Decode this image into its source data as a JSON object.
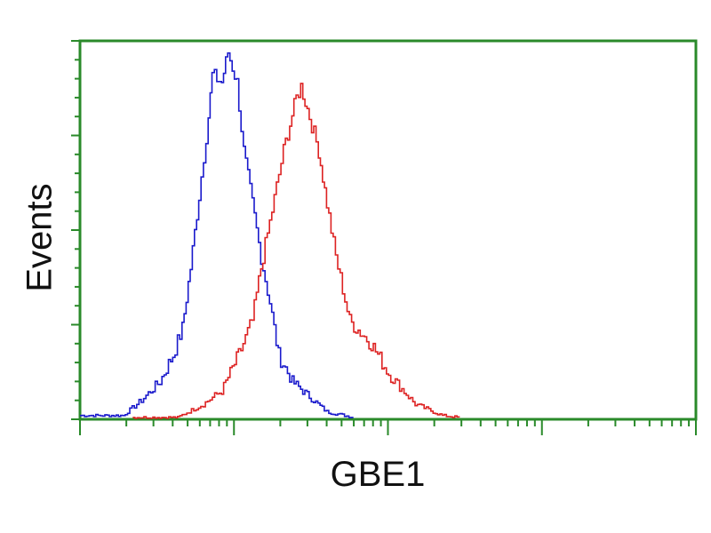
{
  "chart_data": {
    "type": "line",
    "title": "",
    "xlabel": "GBE1",
    "ylabel": "Events",
    "x_scale": "log",
    "xlim": [
      1,
      10000
    ],
    "ylim": [
      0,
      100
    ],
    "grid": false,
    "tick_labels_shown": false,
    "frame_color": "#2a8a2a",
    "series": [
      {
        "color": "#1a1acc",
        "x": [
          1,
          1.9,
          2.5,
          3.3,
          4.0,
          4.6,
          5.2,
          5.9,
          6.8,
          7.2,
          8.3,
          9.1,
          10.4,
          11.5,
          13.1,
          14.9,
          17.0,
          19.4,
          23.8,
          30.8,
          39.9,
          59.7
        ],
        "y": [
          1,
          1,
          5,
          10,
          17,
          24,
          40,
          59,
          80,
          91,
          89,
          97,
          89,
          71,
          57,
          43,
          31,
          17,
          10,
          6,
          2,
          0.5
        ]
      },
      {
        "color": "#dd2222",
        "x": [
          2.2,
          4.3,
          6.3,
          8.3,
          10.7,
          13.1,
          14.9,
          17.0,
          20.9,
          25.3,
          27.1,
          30.8,
          35.3,
          39.9,
          45.6,
          56.2,
          77.7,
          101,
          150,
          225,
          290
        ],
        "y": [
          0.5,
          0.5,
          4,
          7.5,
          17,
          26,
          40,
          52,
          71,
          85,
          88,
          80,
          71,
          57,
          43,
          26,
          20,
          12,
          4,
          1,
          0.5
        ]
      }
    ]
  }
}
